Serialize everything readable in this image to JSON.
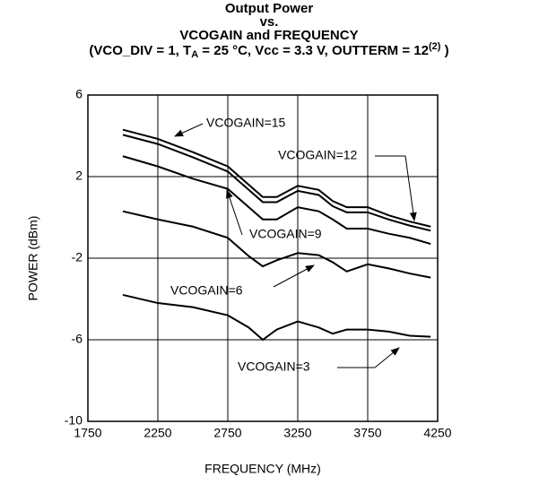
{
  "chart_data": {
    "type": "line",
    "title": [
      "Output Power",
      "vs.",
      "VCOGAIN and FREQUENCY"
    ],
    "subtitle_parts": [
      "(VCO_DIV = 1, T",
      "A",
      " = 25 °C, Vcc = 3.3 V, OUTTERM = 12",
      "(2)",
      " )"
    ],
    "x_label": "FREQUENCY (MHz)",
    "y_label": "POWER (dBm)",
    "x": [
      2000,
      2250,
      2500,
      2750,
      2900,
      3000,
      3100,
      3250,
      3400,
      3500,
      3600,
      3750,
      3900,
      4050,
      4200
    ],
    "series": [
      {
        "name": "VCOGAIN=15",
        "color": "#000000",
        "values": [
          4.3,
          3.85,
          3.2,
          2.5,
          1.6,
          1.0,
          1.0,
          1.55,
          1.35,
          0.8,
          0.5,
          0.5,
          0.1,
          -0.2,
          -0.45
        ]
      },
      {
        "name": "VCOGAIN=12",
        "color": "#000000",
        "values": [
          4.05,
          3.6,
          2.95,
          2.25,
          1.35,
          0.75,
          0.75,
          1.3,
          1.1,
          0.55,
          0.25,
          0.25,
          -0.1,
          -0.4,
          -0.65
        ]
      },
      {
        "name": "VCOGAIN=9",
        "color": "#000000",
        "values": [
          3.0,
          2.5,
          1.9,
          1.4,
          0.5,
          -0.1,
          -0.1,
          0.5,
          0.3,
          -0.1,
          -0.55,
          -0.55,
          -0.8,
          -1.0,
          -1.3
        ]
      },
      {
        "name": "VCOGAIN=6",
        "color": "#000000",
        "values": [
          0.3,
          -0.1,
          -0.45,
          -1.0,
          -1.9,
          -2.4,
          -2.1,
          -1.75,
          -1.85,
          -2.2,
          -2.65,
          -2.3,
          -2.5,
          -2.75,
          -2.95
        ]
      },
      {
        "name": "VCOGAIN=3",
        "color": "#000000",
        "values": [
          -3.8,
          -4.2,
          -4.4,
          -4.8,
          -5.4,
          -6.0,
          -5.5,
          -5.1,
          -5.4,
          -5.7,
          -5.5,
          -5.5,
          -5.6,
          -5.8,
          -5.85
        ]
      }
    ],
    "xlim": [
      1750,
      4250
    ],
    "xticks": [
      1750,
      2250,
      2750,
      3250,
      3750,
      4250
    ],
    "ylim": [
      -10,
      6
    ],
    "yticks": [
      -10,
      -6,
      -2,
      2,
      6
    ],
    "grid": true
  }
}
